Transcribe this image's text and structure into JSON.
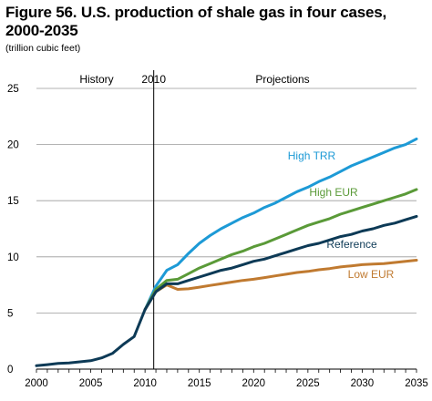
{
  "figure": {
    "title_line1": "Figure 56. U.S. production of shale gas in four cases,",
    "title_line2": "2000-2035",
    "subtitle": "(trillion cubic feet)"
  },
  "chart_data": {
    "type": "line",
    "title": "Figure 56. U.S. production of shale gas in four cases, 2000-2035",
    "ylabel": "(trillion cubic feet)",
    "xlim": [
      2000,
      2035
    ],
    "ylim": [
      0,
      25
    ],
    "x_ticks": [
      2000,
      2005,
      2010,
      2015,
      2020,
      2025,
      2030,
      2035
    ],
    "y_ticks": [
      0,
      5,
      10,
      15,
      20,
      25
    ],
    "grid": "horizontal",
    "annotations": {
      "history": "History",
      "divider_year_label": "2010",
      "projections": "Projections"
    },
    "divider_year": 2010.8,
    "history": {
      "name": "History",
      "color": "#0d3a56",
      "x": [
        2000,
        2001,
        2002,
        2003,
        2004,
        2005,
        2006,
        2007,
        2008,
        2009,
        2010
      ],
      "values": [
        0.3,
        0.4,
        0.5,
        0.55,
        0.65,
        0.75,
        1.0,
        1.4,
        2.2,
        2.9,
        5.3
      ]
    },
    "series": [
      {
        "name": "High TRR",
        "color": "#1d9ad6",
        "x": [
          2010,
          2011,
          2012,
          2013,
          2014,
          2015,
          2016,
          2017,
          2018,
          2019,
          2020,
          2021,
          2022,
          2023,
          2024,
          2025,
          2026,
          2027,
          2028,
          2029,
          2030,
          2031,
          2032,
          2033,
          2034,
          2035
        ],
        "values": [
          5.3,
          7.4,
          8.8,
          9.3,
          10.3,
          11.2,
          11.9,
          12.5,
          13.0,
          13.5,
          13.9,
          14.4,
          14.8,
          15.3,
          15.8,
          16.2,
          16.7,
          17.1,
          17.6,
          18.1,
          18.5,
          18.9,
          19.3,
          19.7,
          20.0,
          20.5
        ]
      },
      {
        "name": "High EUR",
        "color": "#5a9a38",
        "x": [
          2010,
          2011,
          2012,
          2013,
          2014,
          2015,
          2016,
          2017,
          2018,
          2019,
          2020,
          2021,
          2022,
          2023,
          2024,
          2025,
          2026,
          2027,
          2028,
          2029,
          2030,
          2031,
          2032,
          2033,
          2034,
          2035
        ],
        "values": [
          5.3,
          7.1,
          7.9,
          8.0,
          8.5,
          9.0,
          9.4,
          9.8,
          10.2,
          10.5,
          10.9,
          11.2,
          11.6,
          12.0,
          12.4,
          12.8,
          13.1,
          13.4,
          13.8,
          14.1,
          14.4,
          14.7,
          15.0,
          15.3,
          15.6,
          16.0
        ]
      },
      {
        "name": "Reference",
        "color": "#0d3a56",
        "x": [
          2010,
          2011,
          2012,
          2013,
          2014,
          2015,
          2016,
          2017,
          2018,
          2019,
          2020,
          2021,
          2022,
          2023,
          2024,
          2025,
          2026,
          2027,
          2028,
          2029,
          2030,
          2031,
          2032,
          2033,
          2034,
          2035
        ],
        "values": [
          5.3,
          6.9,
          7.6,
          7.6,
          7.9,
          8.2,
          8.5,
          8.8,
          9.0,
          9.3,
          9.6,
          9.8,
          10.1,
          10.4,
          10.7,
          11.0,
          11.2,
          11.5,
          11.8,
          12.0,
          12.3,
          12.5,
          12.8,
          13.0,
          13.3,
          13.6
        ]
      },
      {
        "name": "Low EUR",
        "color": "#c07a30",
        "x": [
          2010,
          2011,
          2012,
          2013,
          2014,
          2015,
          2016,
          2017,
          2018,
          2019,
          2020,
          2021,
          2022,
          2023,
          2024,
          2025,
          2026,
          2027,
          2028,
          2029,
          2030,
          2031,
          2032,
          2033,
          2034,
          2035
        ],
        "values": [
          5.3,
          6.9,
          7.5,
          7.1,
          7.15,
          7.3,
          7.45,
          7.6,
          7.75,
          7.9,
          8.0,
          8.15,
          8.3,
          8.45,
          8.6,
          8.7,
          8.85,
          8.95,
          9.1,
          9.2,
          9.3,
          9.35,
          9.4,
          9.5,
          9.6,
          9.7
        ]
      }
    ]
  }
}
